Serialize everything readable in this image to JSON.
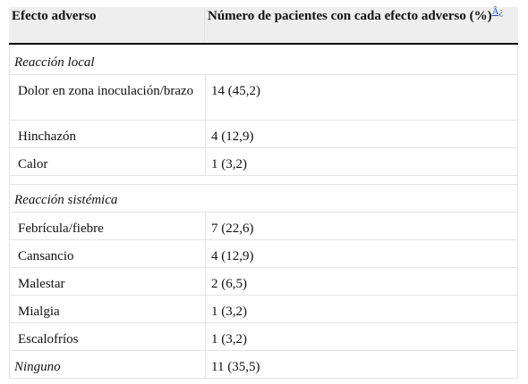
{
  "header": {
    "col1": "Efecto adverso",
    "col2": "Número de pacientes con cada efecto adverso (%)",
    "footnote": "Â¿"
  },
  "sections": [
    {
      "label": "Reacción local",
      "rows": [
        {
          "effect": "Dolor en zona inoculación/brazo",
          "value": "14 (45,2)"
        },
        {
          "effect": "Hinchazón",
          "value": "4 (12,9)"
        },
        {
          "effect": "Calor",
          "value": "1 (3,2)"
        }
      ]
    },
    {
      "label": "Reacción sistémica",
      "rows": [
        {
          "effect": "Febrícula/fiebre",
          "value": "7 (22,6)"
        },
        {
          "effect": "Cansancio",
          "value": "4 (12,9)"
        },
        {
          "effect": "Malestar",
          "value": "2 (6,5)"
        },
        {
          "effect": "Mialgia",
          "value": "1 (3,2)"
        },
        {
          "effect": "Escalofríos",
          "value": "1 (3,2)"
        }
      ]
    }
  ],
  "none_row": {
    "effect": "Ninguno",
    "value": "11 (35,5)"
  }
}
